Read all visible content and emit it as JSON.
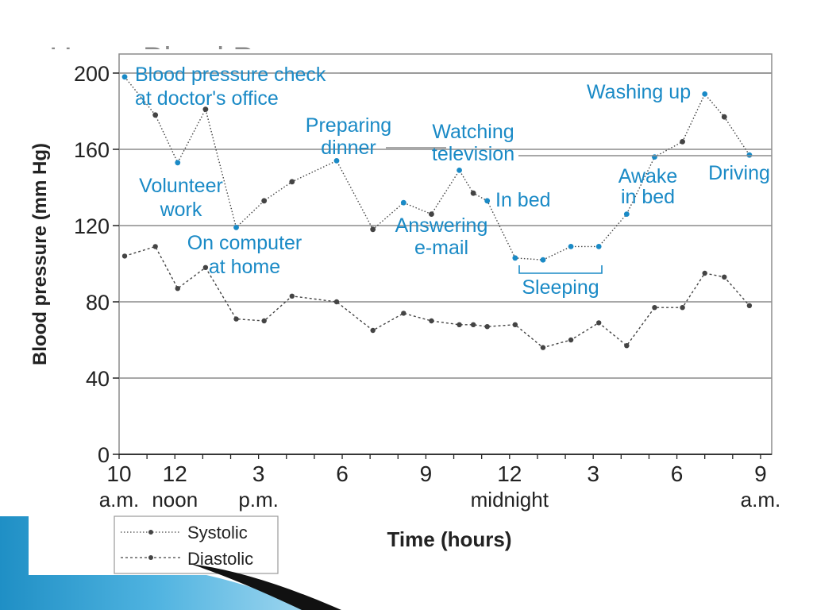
{
  "slide": {
    "title": "Home Blood Pressure"
  },
  "colors": {
    "annotation": "#1a8ac6",
    "line": "#444444",
    "grid": "#8c8c8c",
    "frame": "#8c8c8c",
    "deco_blue": "#1f8fc5",
    "deco_dark": "#111111"
  },
  "chart_data": {
    "type": "line",
    "ylabel": "Blood pressure (mm Hg)",
    "xlabel": "Time (hours)",
    "ylim": [
      0,
      210
    ],
    "yticks": [
      0,
      40,
      80,
      120,
      160,
      200
    ],
    "xlim": [
      10,
      33.4
    ],
    "grid": "horizontal",
    "xticks": [
      {
        "x": 10,
        "line1": "10",
        "line2": "a.m."
      },
      {
        "x": 12,
        "line1": "12",
        "line2": "noon"
      },
      {
        "x": 15,
        "line1": "3",
        "line2": "p.m."
      },
      {
        "x": 18,
        "line1": "6",
        "line2": ""
      },
      {
        "x": 21,
        "line1": "9",
        "line2": ""
      },
      {
        "x": 24,
        "line1": "12",
        "line2": "midnight"
      },
      {
        "x": 27,
        "line1": "3",
        "line2": ""
      },
      {
        "x": 30,
        "line1": "6",
        "line2": ""
      },
      {
        "x": 33,
        "line1": "9",
        "line2": "a.m."
      }
    ],
    "legend": {
      "placement": "bottom-left",
      "entries": [
        "Systolic",
        "Diastolic"
      ]
    },
    "series": [
      {
        "name": "Systolic",
        "points": [
          [
            10.2,
            198
          ],
          [
            11.3,
            178
          ],
          [
            12.1,
            153
          ],
          [
            13.1,
            181
          ],
          [
            14.2,
            119
          ],
          [
            15.2,
            133
          ],
          [
            16.2,
            143
          ],
          [
            17.8,
            154
          ],
          [
            19.1,
            118
          ],
          [
            20.2,
            132
          ],
          [
            21.2,
            126
          ],
          [
            22.2,
            149
          ],
          [
            22.7,
            137
          ],
          [
            23.2,
            133
          ],
          [
            24.2,
            103
          ],
          [
            25.2,
            102
          ],
          [
            26.2,
            109
          ],
          [
            27.2,
            109
          ],
          [
            28.2,
            126
          ],
          [
            29.2,
            156
          ],
          [
            30.2,
            164
          ],
          [
            31.0,
            189
          ],
          [
            31.7,
            177
          ],
          [
            32.6,
            157
          ]
        ]
      },
      {
        "name": "Diastolic",
        "points": [
          [
            10.2,
            104
          ],
          [
            11.3,
            109
          ],
          [
            12.1,
            87
          ],
          [
            13.1,
            98
          ],
          [
            14.2,
            71
          ],
          [
            15.2,
            70
          ],
          [
            16.2,
            83
          ],
          [
            17.8,
            80
          ],
          [
            19.1,
            65
          ],
          [
            20.2,
            74
          ],
          [
            21.2,
            70
          ],
          [
            22.2,
            68
          ],
          [
            22.7,
            68
          ],
          [
            23.2,
            67
          ],
          [
            24.2,
            68
          ],
          [
            25.2,
            56
          ],
          [
            26.2,
            60
          ],
          [
            27.2,
            69
          ],
          [
            28.2,
            57
          ],
          [
            29.2,
            77
          ],
          [
            30.2,
            77
          ],
          [
            31.0,
            95
          ],
          [
            31.7,
            93
          ],
          [
            32.6,
            78
          ]
        ]
      }
    ],
    "annotations": [
      {
        "lines": [
          "Blood pressure check",
          "at doctor's office"
        ]
      },
      {
        "lines": [
          "Volunteer",
          "work"
        ]
      },
      {
        "lines": [
          "On computer",
          "at home"
        ]
      },
      {
        "lines": [
          "Preparing",
          "dinner"
        ]
      },
      {
        "lines": [
          "Watching",
          "television"
        ]
      },
      {
        "lines": [
          "Answering",
          "e-mail"
        ]
      },
      {
        "lines": [
          "In bed"
        ]
      },
      {
        "lines": [
          "Sleeping"
        ]
      },
      {
        "lines": [
          "Awake",
          "in bed"
        ]
      },
      {
        "lines": [
          "Washing up"
        ]
      },
      {
        "lines": [
          "Driving"
        ]
      }
    ]
  }
}
